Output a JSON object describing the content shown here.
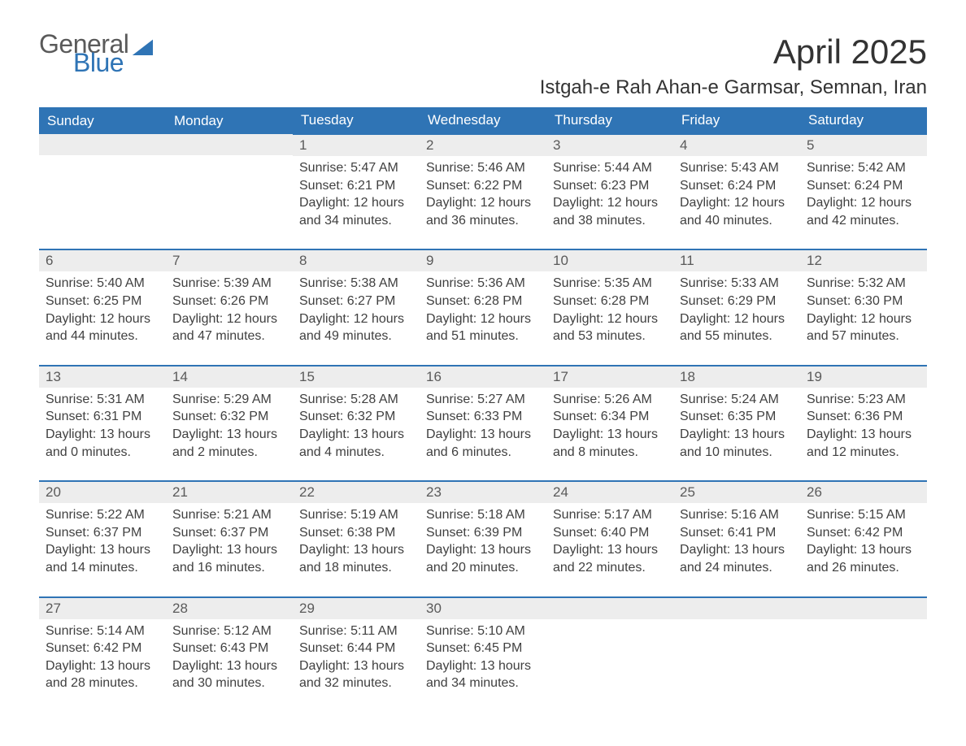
{
  "brand": {
    "part1": "General",
    "part2": "Blue"
  },
  "title": "April 2025",
  "location": "Istgah-e Rah Ahan-e Garmsar, Semnan, Iran",
  "colors": {
    "header_bg": "#2f74b5",
    "header_text": "#ffffff",
    "daynum_bg": "#ededed",
    "daynum_text": "#5a5a5a",
    "body_text": "#404040",
    "row_border": "#2f74b5",
    "page_bg": "#ffffff"
  },
  "daysOfWeek": [
    "Sunday",
    "Monday",
    "Tuesday",
    "Wednesday",
    "Thursday",
    "Friday",
    "Saturday"
  ],
  "weeks": [
    [
      null,
      null,
      {
        "num": "1",
        "sunrise": "Sunrise: 5:47 AM",
        "sunset": "Sunset: 6:21 PM",
        "daylight": "Daylight: 12 hours and 34 minutes."
      },
      {
        "num": "2",
        "sunrise": "Sunrise: 5:46 AM",
        "sunset": "Sunset: 6:22 PM",
        "daylight": "Daylight: 12 hours and 36 minutes."
      },
      {
        "num": "3",
        "sunrise": "Sunrise: 5:44 AM",
        "sunset": "Sunset: 6:23 PM",
        "daylight": "Daylight: 12 hours and 38 minutes."
      },
      {
        "num": "4",
        "sunrise": "Sunrise: 5:43 AM",
        "sunset": "Sunset: 6:24 PM",
        "daylight": "Daylight: 12 hours and 40 minutes."
      },
      {
        "num": "5",
        "sunrise": "Sunrise: 5:42 AM",
        "sunset": "Sunset: 6:24 PM",
        "daylight": "Daylight: 12 hours and 42 minutes."
      }
    ],
    [
      {
        "num": "6",
        "sunrise": "Sunrise: 5:40 AM",
        "sunset": "Sunset: 6:25 PM",
        "daylight": "Daylight: 12 hours and 44 minutes."
      },
      {
        "num": "7",
        "sunrise": "Sunrise: 5:39 AM",
        "sunset": "Sunset: 6:26 PM",
        "daylight": "Daylight: 12 hours and 47 minutes."
      },
      {
        "num": "8",
        "sunrise": "Sunrise: 5:38 AM",
        "sunset": "Sunset: 6:27 PM",
        "daylight": "Daylight: 12 hours and 49 minutes."
      },
      {
        "num": "9",
        "sunrise": "Sunrise: 5:36 AM",
        "sunset": "Sunset: 6:28 PM",
        "daylight": "Daylight: 12 hours and 51 minutes."
      },
      {
        "num": "10",
        "sunrise": "Sunrise: 5:35 AM",
        "sunset": "Sunset: 6:28 PM",
        "daylight": "Daylight: 12 hours and 53 minutes."
      },
      {
        "num": "11",
        "sunrise": "Sunrise: 5:33 AM",
        "sunset": "Sunset: 6:29 PM",
        "daylight": "Daylight: 12 hours and 55 minutes."
      },
      {
        "num": "12",
        "sunrise": "Sunrise: 5:32 AM",
        "sunset": "Sunset: 6:30 PM",
        "daylight": "Daylight: 12 hours and 57 minutes."
      }
    ],
    [
      {
        "num": "13",
        "sunrise": "Sunrise: 5:31 AM",
        "sunset": "Sunset: 6:31 PM",
        "daylight": "Daylight: 13 hours and 0 minutes."
      },
      {
        "num": "14",
        "sunrise": "Sunrise: 5:29 AM",
        "sunset": "Sunset: 6:32 PM",
        "daylight": "Daylight: 13 hours and 2 minutes."
      },
      {
        "num": "15",
        "sunrise": "Sunrise: 5:28 AM",
        "sunset": "Sunset: 6:32 PM",
        "daylight": "Daylight: 13 hours and 4 minutes."
      },
      {
        "num": "16",
        "sunrise": "Sunrise: 5:27 AM",
        "sunset": "Sunset: 6:33 PM",
        "daylight": "Daylight: 13 hours and 6 minutes."
      },
      {
        "num": "17",
        "sunrise": "Sunrise: 5:26 AM",
        "sunset": "Sunset: 6:34 PM",
        "daylight": "Daylight: 13 hours and 8 minutes."
      },
      {
        "num": "18",
        "sunrise": "Sunrise: 5:24 AM",
        "sunset": "Sunset: 6:35 PM",
        "daylight": "Daylight: 13 hours and 10 minutes."
      },
      {
        "num": "19",
        "sunrise": "Sunrise: 5:23 AM",
        "sunset": "Sunset: 6:36 PM",
        "daylight": "Daylight: 13 hours and 12 minutes."
      }
    ],
    [
      {
        "num": "20",
        "sunrise": "Sunrise: 5:22 AM",
        "sunset": "Sunset: 6:37 PM",
        "daylight": "Daylight: 13 hours and 14 minutes."
      },
      {
        "num": "21",
        "sunrise": "Sunrise: 5:21 AM",
        "sunset": "Sunset: 6:37 PM",
        "daylight": "Daylight: 13 hours and 16 minutes."
      },
      {
        "num": "22",
        "sunrise": "Sunrise: 5:19 AM",
        "sunset": "Sunset: 6:38 PM",
        "daylight": "Daylight: 13 hours and 18 minutes."
      },
      {
        "num": "23",
        "sunrise": "Sunrise: 5:18 AM",
        "sunset": "Sunset: 6:39 PM",
        "daylight": "Daylight: 13 hours and 20 minutes."
      },
      {
        "num": "24",
        "sunrise": "Sunrise: 5:17 AM",
        "sunset": "Sunset: 6:40 PM",
        "daylight": "Daylight: 13 hours and 22 minutes."
      },
      {
        "num": "25",
        "sunrise": "Sunrise: 5:16 AM",
        "sunset": "Sunset: 6:41 PM",
        "daylight": "Daylight: 13 hours and 24 minutes."
      },
      {
        "num": "26",
        "sunrise": "Sunrise: 5:15 AM",
        "sunset": "Sunset: 6:42 PM",
        "daylight": "Daylight: 13 hours and 26 minutes."
      }
    ],
    [
      {
        "num": "27",
        "sunrise": "Sunrise: 5:14 AM",
        "sunset": "Sunset: 6:42 PM",
        "daylight": "Daylight: 13 hours and 28 minutes."
      },
      {
        "num": "28",
        "sunrise": "Sunrise: 5:12 AM",
        "sunset": "Sunset: 6:43 PM",
        "daylight": "Daylight: 13 hours and 30 minutes."
      },
      {
        "num": "29",
        "sunrise": "Sunrise: 5:11 AM",
        "sunset": "Sunset: 6:44 PM",
        "daylight": "Daylight: 13 hours and 32 minutes."
      },
      {
        "num": "30",
        "sunrise": "Sunrise: 5:10 AM",
        "sunset": "Sunset: 6:45 PM",
        "daylight": "Daylight: 13 hours and 34 minutes."
      },
      null,
      null,
      null
    ]
  ]
}
